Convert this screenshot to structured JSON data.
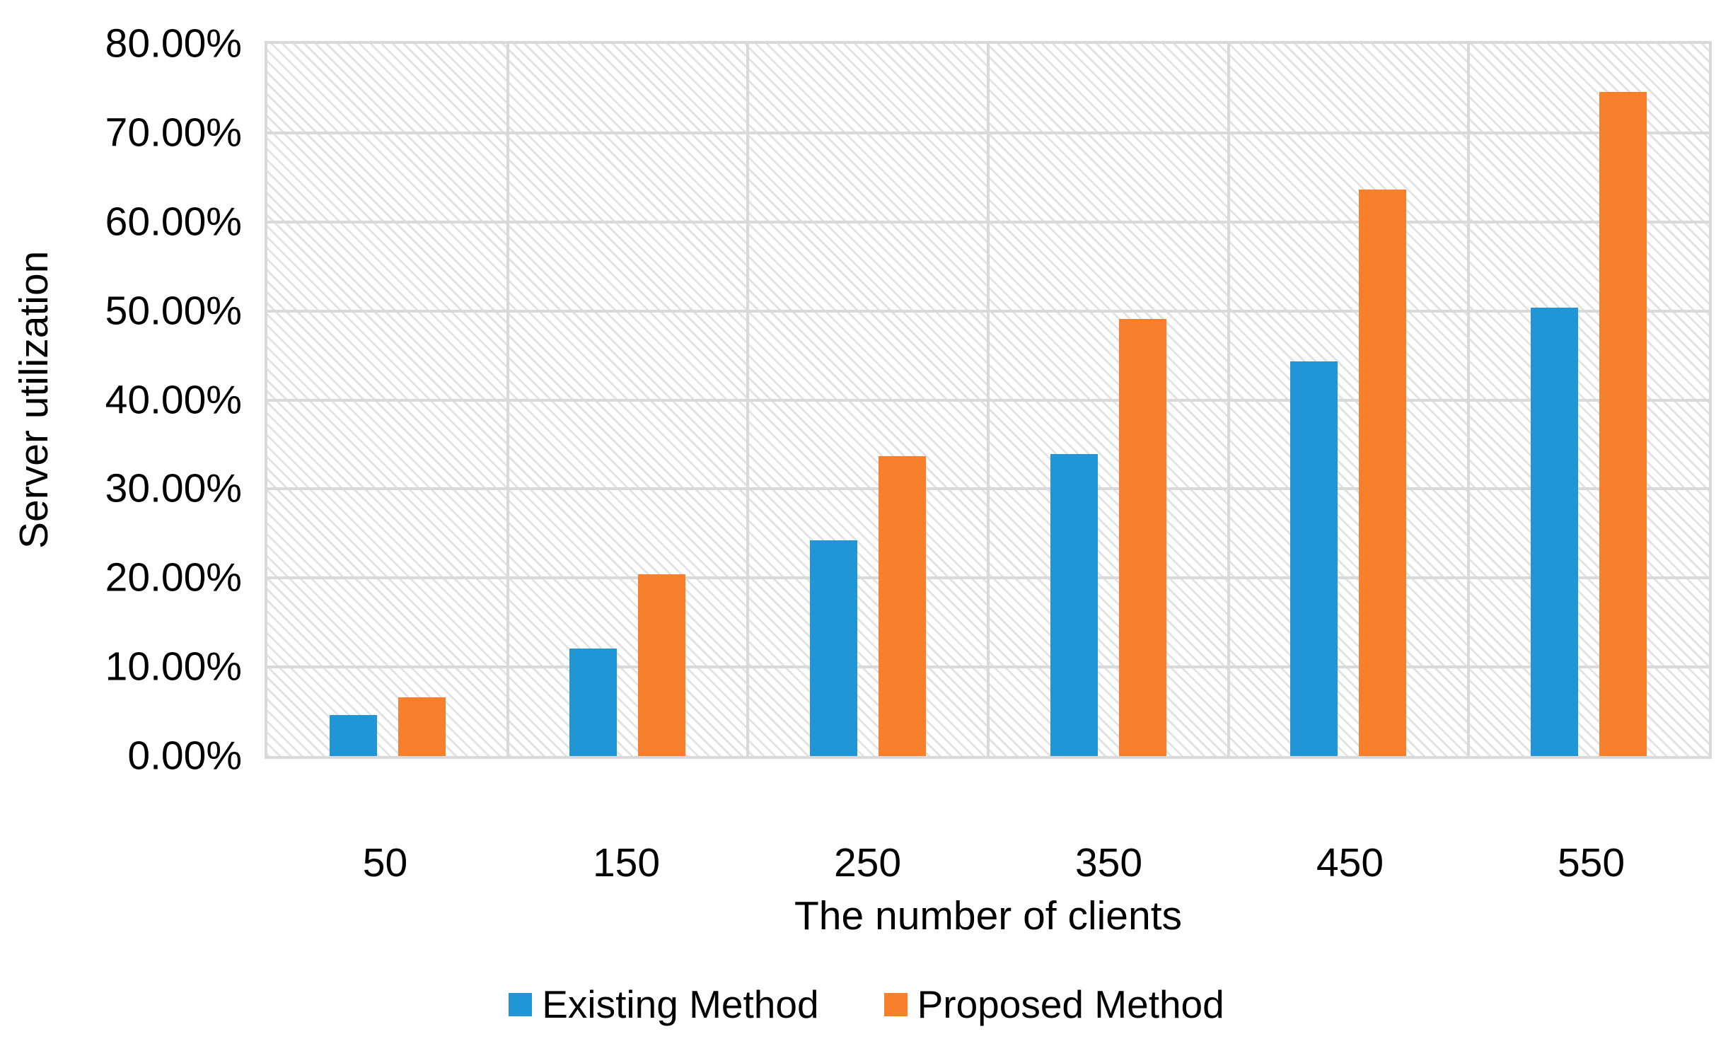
{
  "chart_data": {
    "type": "bar",
    "title": "",
    "xlabel": "The number of clients",
    "ylabel": "Server utilization",
    "categories": [
      "50",
      "150",
      "250",
      "350",
      "450",
      "550"
    ],
    "series": [
      {
        "name": "Existing Method",
        "color": "#2196D6",
        "values": [
          4.6,
          12.1,
          24.2,
          33.9,
          44.3,
          50.4
        ]
      },
      {
        "name": "Proposed Method",
        "color": "#F8802C",
        "values": [
          6.6,
          20.4,
          33.7,
          49.1,
          63.6,
          74.6
        ]
      }
    ],
    "ylim": [
      0,
      80
    ],
    "ytick_step": 10,
    "ytick_labels": [
      "0.00%",
      "10.00%",
      "20.00%",
      "30.00%",
      "40.00%",
      "50.00%",
      "60.00%",
      "70.00%",
      "80.00%"
    ],
    "grid": true,
    "gridline_color": "#D9D9D9",
    "plot_hatch": "light-downward-diagonal",
    "legend_position": "bottom"
  }
}
